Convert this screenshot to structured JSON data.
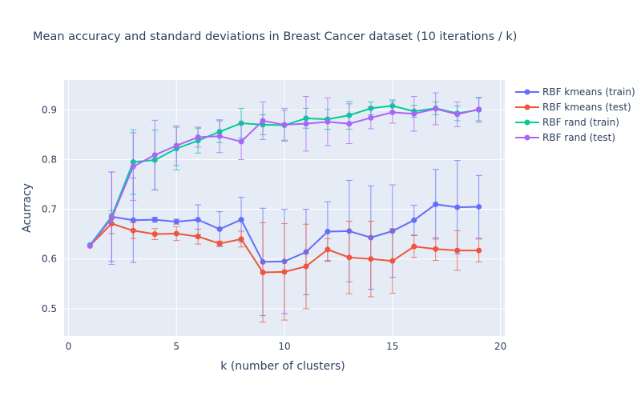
{
  "chart_data": {
    "type": "line",
    "title": "Mean accuracy and standard deviations in Breast Cancer dataset (10 iterations / k)",
    "xlabel": "k (number of clusters)",
    "ylabel": "Acurracy",
    "xlim": [
      -0.2,
      20.2
    ],
    "ylim": [
      0.445,
      0.96
    ],
    "xticks": [
      0,
      5,
      10,
      15,
      20
    ],
    "yticks": [
      0.5,
      0.6,
      0.7,
      0.8,
      0.9
    ],
    "grid": true,
    "legend_position": "right",
    "x": [
      1,
      2,
      3,
      4,
      5,
      6,
      7,
      8,
      9,
      10,
      11,
      12,
      13,
      14,
      15,
      16,
      17,
      18,
      19
    ],
    "series": [
      {
        "name": "RBF kmeans (train)",
        "color": "#636efa",
        "values": [
          0.627,
          0.685,
          0.678,
          0.679,
          0.675,
          0.679,
          0.66,
          0.679,
          0.594,
          0.595,
          0.614,
          0.655,
          0.656,
          0.643,
          0.656,
          0.678,
          0.71,
          0.704,
          0.705
        ],
        "error": [
          0.0,
          0.09,
          0.085,
          0.005,
          0.005,
          0.03,
          0.035,
          0.045,
          0.108,
          0.105,
          0.086,
          0.06,
          0.102,
          0.104,
          0.093,
          0.03,
          0.07,
          0.094,
          0.063
        ]
      },
      {
        "name": "RBF kmeans (test)",
        "color": "#ef553b",
        "values": [
          0.627,
          0.671,
          0.657,
          0.65,
          0.651,
          0.645,
          0.631,
          0.64,
          0.573,
          0.574,
          0.585,
          0.619,
          0.603,
          0.6,
          0.596,
          0.625,
          0.62,
          0.617,
          0.617
        ],
        "error": [
          0.0,
          0.02,
          0.016,
          0.011,
          0.014,
          0.015,
          0.005,
          0.016,
          0.1,
          0.097,
          0.085,
          0.022,
          0.073,
          0.076,
          0.065,
          0.022,
          0.023,
          0.04,
          0.023
        ]
      },
      {
        "name": "RBF rand (train)",
        "color": "#00cc96",
        "values": [
          0.628,
          0.685,
          0.795,
          0.799,
          0.822,
          0.838,
          0.856,
          0.873,
          0.87,
          0.869,
          0.883,
          0.881,
          0.889,
          0.903,
          0.908,
          0.897,
          0.903,
          0.893,
          0.9
        ],
        "error": [
          0.0,
          0.013,
          0.065,
          0.06,
          0.043,
          0.025,
          0.022,
          0.03,
          0.02,
          0.03,
          0.02,
          0.02,
          0.028,
          0.013,
          0.012,
          0.012,
          0.013,
          0.015,
          0.025
        ]
      },
      {
        "name": "RBF rand (test)",
        "color": "#ab63fa",
        "values": [
          0.626,
          0.682,
          0.786,
          0.809,
          0.828,
          0.845,
          0.847,
          0.836,
          0.878,
          0.87,
          0.872,
          0.876,
          0.872,
          0.884,
          0.895,
          0.892,
          0.902,
          0.891,
          0.901
        ],
        "error": [
          0.0,
          0.093,
          0.068,
          0.07,
          0.04,
          0.02,
          0.033,
          0.036,
          0.038,
          0.033,
          0.055,
          0.048,
          0.04,
          0.022,
          0.022,
          0.035,
          0.032,
          0.025,
          0.023
        ]
      }
    ]
  }
}
